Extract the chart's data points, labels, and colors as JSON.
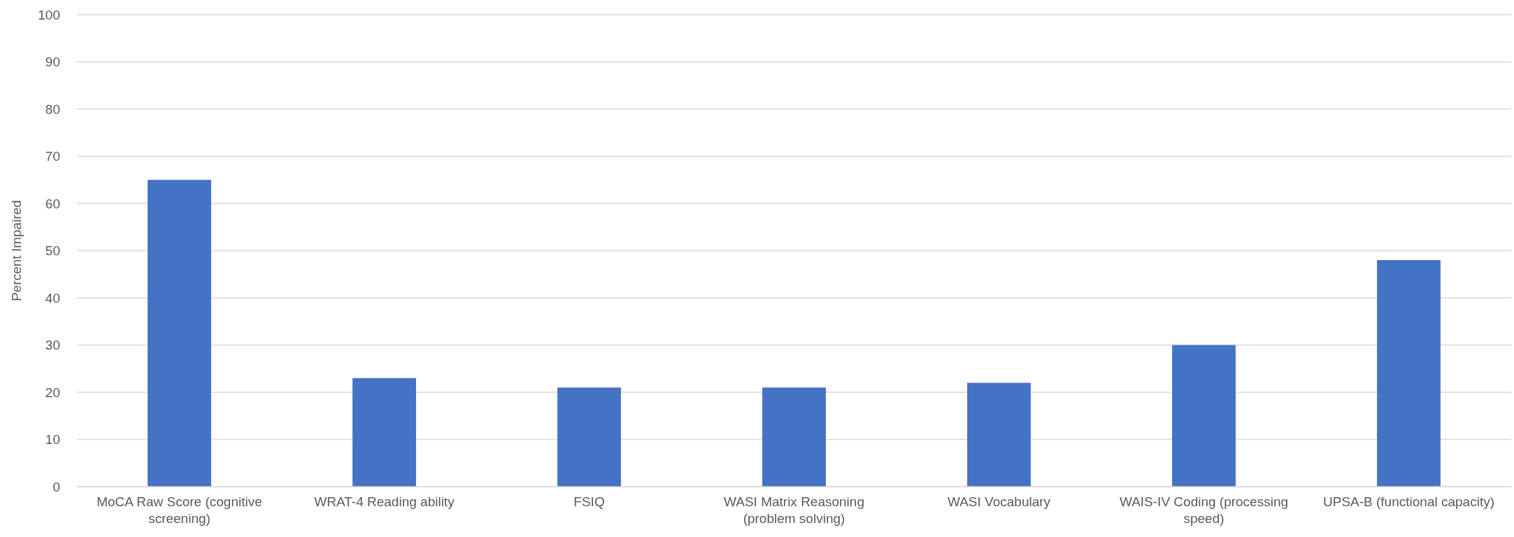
{
  "chart_data": {
    "type": "bar",
    "ylabel": "Percent Impaired",
    "categories": [
      "MoCA Raw Score (cognitive screening)",
      "WRAT-4 Reading ability",
      "FSIQ",
      "WASI Matrix Reasoning (problem solving)",
      "WASI Vocabulary",
      "WAIS-IV Coding (processing speed)",
      "UPSA-B (functional capacity)"
    ],
    "values": [
      65,
      23,
      21,
      21,
      22,
      30,
      48
    ],
    "color": "#4472c4",
    "ylim": [
      0,
      100
    ],
    "yticks": [
      0,
      10,
      20,
      30,
      40,
      50,
      60,
      70,
      80,
      90,
      100
    ],
    "grid": "y"
  }
}
